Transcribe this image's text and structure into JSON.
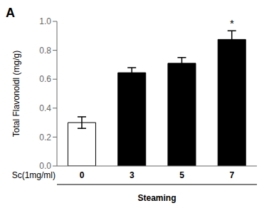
{
  "chart_data": {
    "type": "bar",
    "categories": [
      "0",
      "3",
      "5",
      "7"
    ],
    "values": [
      0.3,
      0.645,
      0.71,
      0.875
    ],
    "errors": [
      0.04,
      0.035,
      0.04,
      0.06
    ],
    "colors": [
      "#ffffff",
      "#000000",
      "#000000",
      "#000000"
    ],
    "ylabel": "Total Flavonoidl (mg/g)",
    "xlabel": "Steaming",
    "ylim": [
      0,
      1.0
    ],
    "yticks": [
      {
        "value": 0,
        "label": "0.0"
      },
      0.2,
      0.4,
      0.6,
      0.8,
      {
        "value": 1.0,
        "label": "1.0"
      }
    ],
    "grid": false,
    "annotations": [
      {
        "text": "A"
      },
      {
        "text": "Sc(1mg/ml)"
      },
      {
        "text": "*",
        "category": "7"
      }
    ]
  }
}
